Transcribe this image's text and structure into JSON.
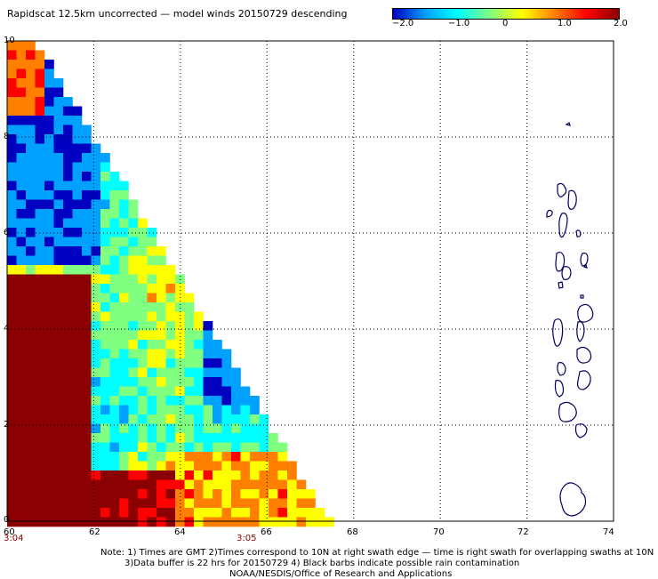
{
  "title": "Rapidscat 12.5km uncorrected — model winds 20150729 descending",
  "colorbar": {
    "labels": [
      "−2.0",
      "−1.0",
      "0",
      "1.0",
      "2.0"
    ],
    "min": -2.0,
    "max": 2.0,
    "colors": [
      "#0000c0",
      "#00a0ff",
      "#00ffff",
      "#80ff80",
      "#ffff00",
      "#ff8000",
      "#ff0000",
      "#8b0000"
    ]
  },
  "axes": {
    "x_ticks": [
      "60",
      "62",
      "64",
      "66",
      "68",
      "70",
      "72",
      "74"
    ],
    "y_ticks": [
      "0",
      "2",
      "4",
      "6",
      "8",
      "10"
    ],
    "x_range": [
      60,
      74
    ],
    "y_range": [
      0,
      10
    ]
  },
  "times": [
    "3:04",
    "3:05"
  ],
  "notes": [
    "Note: 1) Times are GMT 2)Times correspond to 10N at right swath edge — time is right swath for overlapping swaths at 10N",
    "3)Data buffer is 22 hrs for 20150729 4) Black barbs indicate possible rain contamination",
    "NOAA/NESDIS/Office of Research and Applications"
  ]
}
